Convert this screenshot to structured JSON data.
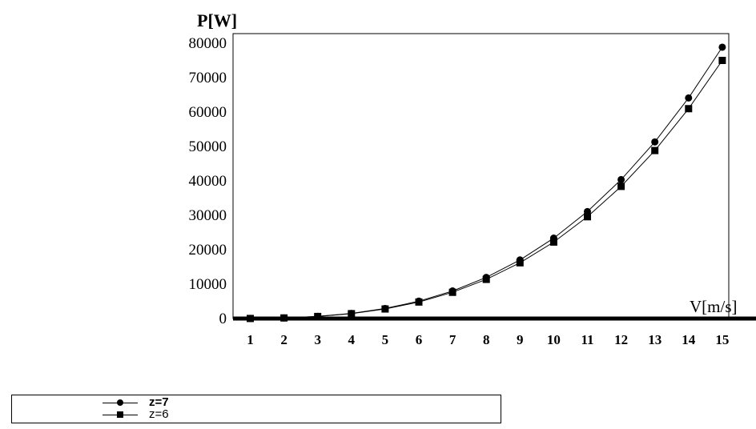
{
  "chart_data": {
    "type": "line",
    "ylabel": "P[W]",
    "xlabel": "V[m/s]",
    "x": [
      1,
      2,
      3,
      4,
      5,
      6,
      7,
      8,
      9,
      10,
      11,
      12,
      13,
      14,
      15
    ],
    "ylim": [
      0,
      80000
    ],
    "yticks": [
      "0",
      "10000",
      "20000",
      "30000",
      "40000",
      "50000",
      "60000",
      "70000",
      "80000"
    ],
    "xticks": [
      "1",
      "2",
      "3",
      "4",
      "5",
      "6",
      "7",
      "8",
      "9",
      "10",
      "11",
      "12",
      "13",
      "14",
      "15"
    ],
    "series": [
      {
        "name": "z=7",
        "marker": "circle",
        "values": [
          23,
          187,
          630,
          1495,
          2920,
          5045,
          8010,
          11960,
          17030,
          23360,
          31090,
          40370,
          51320,
          64100,
          78850
        ]
      },
      {
        "name": "z=6",
        "marker": "square",
        "values": [
          22,
          178,
          600,
          1420,
          2780,
          4800,
          7620,
          11380,
          16200,
          22220,
          29580,
          38400,
          48820,
          60980,
          75000
        ]
      }
    ],
    "grid": false,
    "legend_position": "bottom-left"
  }
}
